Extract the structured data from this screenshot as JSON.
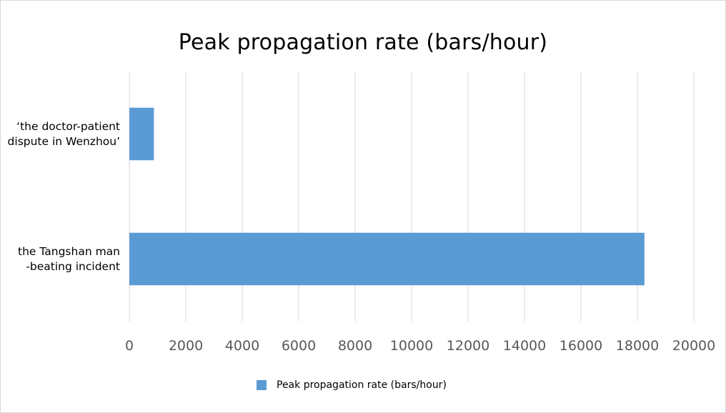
{
  "chart_data": {
    "type": "bar",
    "orientation": "horizontal",
    "title": "Peak propagation rate (bars/hour)",
    "categories": [
      [
        "‘the doctor-patient",
        "dispute in Wenzhou’"
      ],
      [
        "the Tangshan man",
        "-beating incident"
      ]
    ],
    "series": [
      {
        "name": "Peak propagation rate (bars/hour)",
        "values": [
          870,
          18250
        ],
        "color": "#5b9bd5"
      }
    ],
    "xlim": [
      0,
      20000
    ],
    "xticks": [
      "0",
      "2000",
      "4000",
      "6000",
      "8000",
      "10000",
      "12000",
      "14000",
      "16000",
      "18000",
      "20000"
    ],
    "grid": true,
    "legend_position": "bottom"
  }
}
